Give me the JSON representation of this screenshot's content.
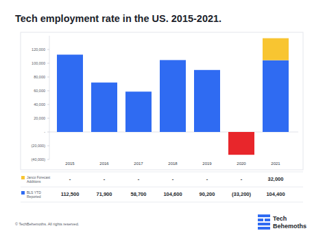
{
  "chart_data": {
    "type": "bar",
    "title": "Tech employment rate in the US. 2015-2021.",
    "categories": [
      "2015",
      "2016",
      "2017",
      "2018",
      "2019",
      "2020",
      "2021"
    ],
    "series": [
      {
        "name": "Janco Forecast Additions",
        "color": "#f8c531",
        "values": [
          null,
          null,
          null,
          null,
          null,
          null,
          32000
        ],
        "value_labels": [
          "-",
          "-",
          "-",
          "-",
          "-",
          "-",
          "32,000"
        ]
      },
      {
        "name": "BLS YTD Reported",
        "color": "#2f6bf2",
        "colors": [
          "#2f6bf2",
          "#2f6bf2",
          "#2f6bf2",
          "#2f6bf2",
          "#2f6bf2",
          "#e8262b",
          "#2f6bf2"
        ],
        "values": [
          112500,
          71900,
          58700,
          104600,
          90200,
          -33200,
          104400
        ],
        "value_labels": [
          "112,500",
          "71,900",
          "58,700",
          "104,600",
          "90,200",
          "(33,200)",
          "104,400"
        ]
      }
    ],
    "stacked": true,
    "data_labels": true,
    "grid": false,
    "ylim": [
      -40000,
      140000
    ],
    "yticks": [
      {
        "value": -40000,
        "label": "(40,000)"
      },
      {
        "value": -20000,
        "label": "(20,000)"
      },
      {
        "value": 0,
        "label": "-"
      },
      {
        "value": 20000,
        "label": "20,000"
      },
      {
        "value": 40000,
        "label": "40,000"
      },
      {
        "value": 60000,
        "label": "60,000"
      },
      {
        "value": 80000,
        "label": "80,000"
      },
      {
        "value": 100000,
        "label": "100,000"
      },
      {
        "value": 120000,
        "label": "120,000"
      }
    ],
    "annotations": [
      "© TechBehemoths. All rights reserved.",
      "Tech",
      "Behemoths"
    ]
  }
}
